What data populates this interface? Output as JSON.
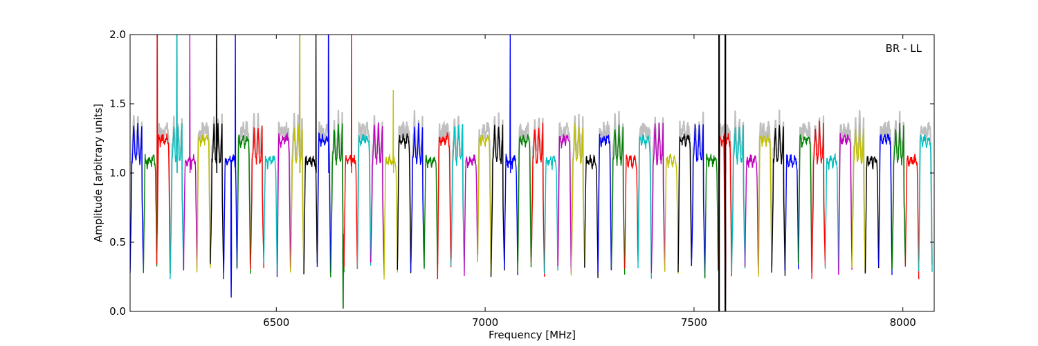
{
  "chart_data": {
    "type": "line",
    "title": "",
    "xlabel": "Frequency [MHz]",
    "ylabel": "Amplitude [arbitrary units]",
    "xlim": [
      6150,
      8075
    ],
    "ylim": [
      0,
      2.0
    ],
    "xticks": [
      6500,
      7000,
      7500,
      8000
    ],
    "yticks": [
      0.0,
      0.5,
      1.0,
      1.5,
      2.0
    ],
    "xtick_labels": [
      "6500",
      "7000",
      "7500",
      "8000"
    ],
    "ytick_labels": [
      "0.0",
      "0.5",
      "1.0",
      "1.5",
      "2.0"
    ],
    "annotation": "BR - LL",
    "annotation_position": "top-right",
    "grid": false,
    "legend": "none",
    "series_colors": [
      "#0000ff",
      "#008000",
      "#ff0000",
      "#00bfbf",
      "#bf00bf",
      "#bfbf00",
      "#000000"
    ],
    "reference_color": "#bfbfbf",
    "channel_width_mhz": 32,
    "channel_start_mhz": 6150,
    "channel_count": 60,
    "passband": {
      "edge_values": [
        0.3,
        0.28,
        0.33,
        0.26
      ],
      "shoulder_values": [
        0.9,
        1.15,
        1.3
      ],
      "center_values": [
        1.05,
        1.2,
        1.35
      ]
    },
    "spikes": [
      {
        "x": 6215,
        "y": 2.0
      },
      {
        "x": 6262,
        "y": 2.0
      },
      {
        "x": 6293,
        "y": 2.0
      },
      {
        "x": 6357,
        "y": 2.0
      },
      {
        "x": 6402,
        "y": 2.0
      },
      {
        "x": 6556,
        "y": 2.0
      },
      {
        "x": 6595,
        "y": 2.0
      },
      {
        "x": 6625,
        "y": 2.0
      },
      {
        "x": 6680,
        "y": 2.0
      },
      {
        "x": 6780,
        "y": 1.6
      },
      {
        "x": 7060,
        "y": 2.0
      },
      {
        "x": 7560,
        "y": 2.0
      },
      {
        "x": 7575,
        "y": 2.0
      }
    ],
    "vertical_lines": [
      7560,
      7575
    ],
    "drops": [
      {
        "x": 6392,
        "y": 0.1
      },
      {
        "x": 6660,
        "y": 0.02
      },
      {
        "x": 7575,
        "y": 0.0
      }
    ]
  }
}
